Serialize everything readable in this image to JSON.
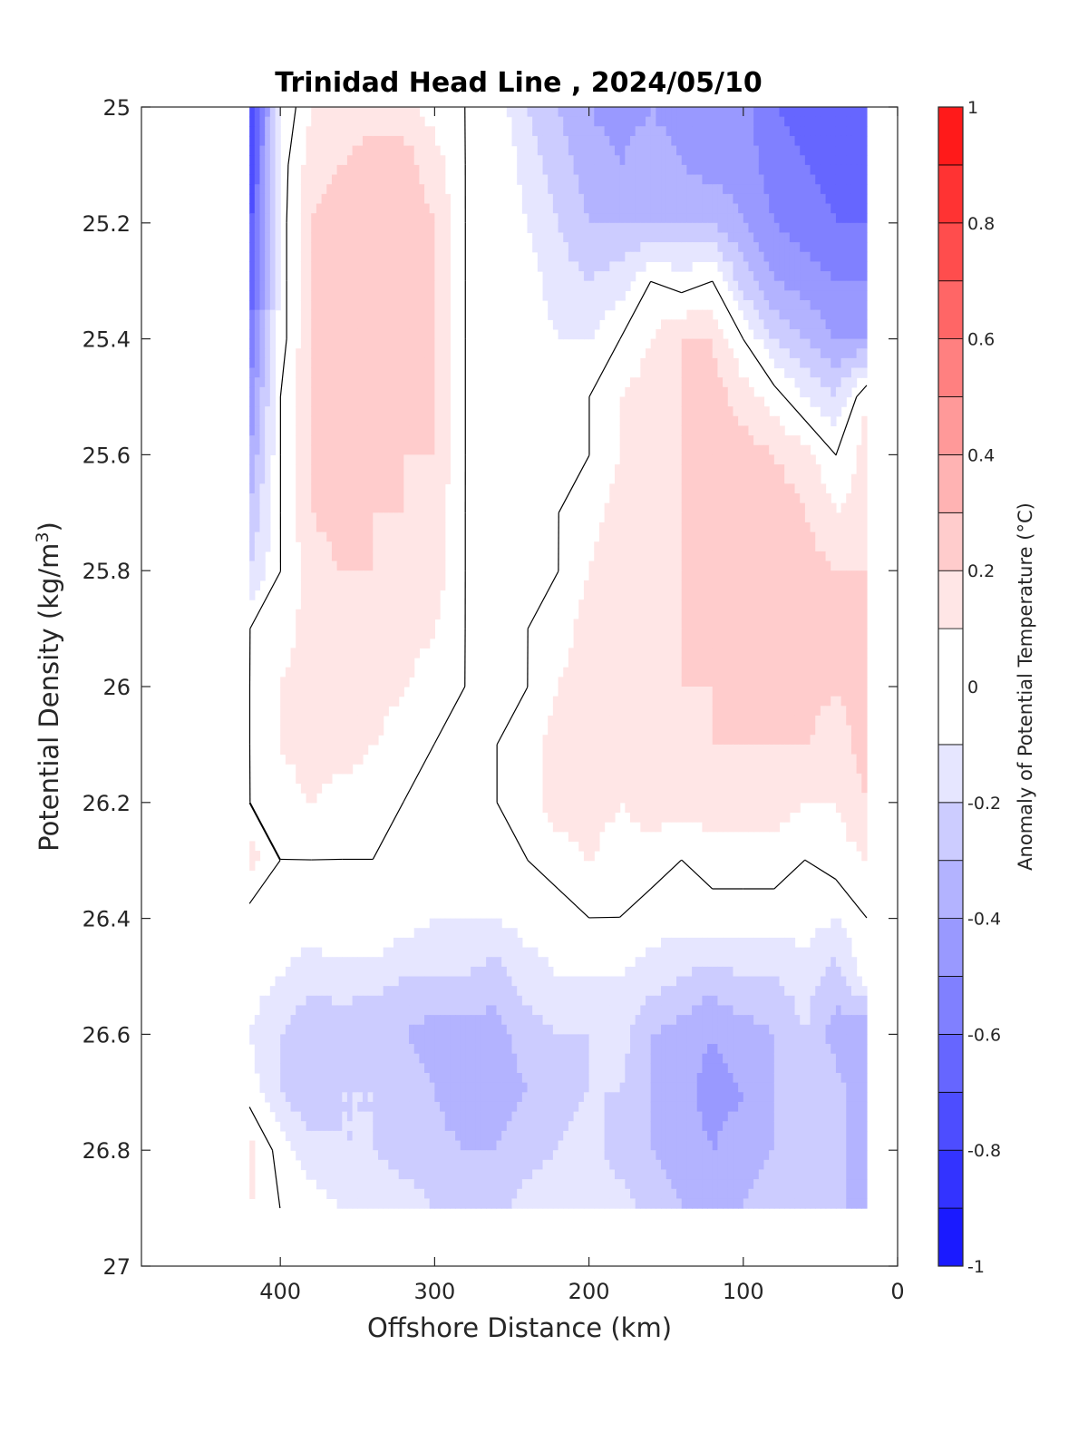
{
  "chart_data": {
    "type": "contour",
    "title": "Trinidad Head Line , 2024/05/10",
    "xlabel": "Offshore Distance (km)",
    "ylabel_text": "Potential Density (kg/m",
    "ylabel_sup": "3",
    "ylabel_close": ")",
    "xlim": [
      490,
      0
    ],
    "ylim": [
      25,
      27
    ],
    "x_reversed": true,
    "y_reversed": true,
    "xticks": [
      400,
      300,
      200,
      100,
      0
    ],
    "xtick_labels": [
      "400",
      "300",
      "200",
      "100",
      "0"
    ],
    "yticks": [
      25,
      25.2,
      25.4,
      25.6,
      25.8,
      26,
      26.2,
      26.4,
      26.6,
      26.8,
      27
    ],
    "ytick_labels": [
      "25",
      "25.2",
      "25.4",
      "25.6",
      "25.8",
      "26",
      "26.2",
      "26.4",
      "26.6",
      "26.8",
      "27"
    ],
    "colorbar": {
      "label": "Anomaly of Potential Temperature (°C)",
      "lim": [
        -1,
        1
      ],
      "ticks": [
        1,
        0.8,
        0.6,
        0.4,
        0.2,
        0,
        -0.2,
        -0.4,
        -0.6,
        -0.8,
        -1
      ],
      "tick_labels": [
        "1",
        "0.8",
        "0.6",
        "0.4",
        "0.2",
        "0",
        "-0.2",
        "-0.4",
        "-0.6",
        "-0.8",
        "-1"
      ],
      "levels": [
        -1,
        -0.9,
        -0.8,
        -0.7,
        -0.6,
        -0.5,
        -0.4,
        -0.3,
        -0.2,
        -0.1,
        0.1,
        0.2,
        0.3,
        0.4,
        0.5,
        0.6,
        0.7,
        0.8,
        0.9,
        1
      ],
      "colors": [
        "#0000ff",
        "#1a1aff",
        "#3333ff",
        "#4d4dff",
        "#6666ff",
        "#8080ff",
        "#9999ff",
        "#b3b3ff",
        "#ccccff",
        "#e6e6ff",
        "#ffffff",
        "#ffe6e6",
        "#ffcccc",
        "#ffb3b3",
        "#ff9999",
        "#ff8080",
        "#ff6666",
        "#ff4d4d",
        "#ff3333",
        "#ff1a1a",
        "#ff0000"
      ]
    },
    "x": [
      420,
      400,
      380,
      360,
      340,
      320,
      300,
      280,
      260,
      240,
      220,
      200,
      180,
      160,
      140,
      120,
      100,
      80,
      60,
      40,
      20
    ],
    "y": [
      25.0,
      25.1,
      25.2,
      25.3,
      25.4,
      25.5,
      25.6,
      25.7,
      25.8,
      25.9,
      26.0,
      26.1,
      26.2,
      26.3,
      26.4,
      26.5,
      26.6,
      26.7,
      26.8,
      26.9
    ],
    "z_rows": [
      [
        -0.85,
        -0.1,
        0.1,
        0.15,
        0.15,
        0.15,
        0.05,
        0.0,
        -0.05,
        -0.2,
        -0.3,
        -0.4,
        -0.45,
        -0.4,
        -0.45,
        -0.5,
        -0.45,
        -0.6,
        -0.65,
        -0.7,
        -0.7
      ],
      [
        -0.8,
        -0.05,
        0.15,
        0.2,
        0.25,
        0.25,
        0.15,
        0.0,
        0.0,
        -0.15,
        -0.25,
        -0.35,
        -0.4,
        -0.35,
        -0.4,
        -0.45,
        -0.45,
        -0.55,
        -0.6,
        -0.65,
        -0.65
      ],
      [
        -0.75,
        -0.05,
        0.2,
        0.25,
        0.25,
        0.25,
        0.2,
        0.0,
        0.0,
        -0.1,
        -0.2,
        -0.3,
        -0.3,
        -0.3,
        -0.3,
        -0.3,
        -0.4,
        -0.5,
        -0.55,
        -0.6,
        -0.6
      ],
      [
        -0.7,
        -0.05,
        0.2,
        0.25,
        0.25,
        0.25,
        0.2,
        0.0,
        0.0,
        -0.05,
        -0.15,
        -0.2,
        -0.15,
        0.0,
        -0.05,
        0.0,
        -0.25,
        -0.4,
        -0.45,
        -0.5,
        -0.5
      ],
      [
        -0.6,
        -0.05,
        0.2,
        0.3,
        0.25,
        0.25,
        0.2,
        0.0,
        0.0,
        -0.05,
        -0.1,
        -0.1,
        0.0,
        0.1,
        0.2,
        0.2,
        0.0,
        -0.2,
        -0.3,
        -0.4,
        -0.4
      ],
      [
        -0.5,
        0.0,
        0.2,
        0.25,
        0.25,
        0.25,
        0.2,
        0.0,
        0.0,
        0.0,
        0.0,
        0.0,
        0.1,
        0.15,
        0.2,
        0.25,
        0.15,
        0.05,
        -0.1,
        -0.2,
        0.1
      ],
      [
        -0.4,
        0.0,
        0.2,
        0.25,
        0.25,
        0.2,
        0.2,
        0.0,
        0.0,
        0.0,
        0.0,
        0.0,
        0.1,
        0.15,
        0.2,
        0.25,
        0.25,
        0.2,
        0.15,
        0.0,
        0.15
      ],
      [
        -0.3,
        0.0,
        0.2,
        0.25,
        0.2,
        0.2,
        0.15,
        0.0,
        0.0,
        0.0,
        0.0,
        0.05,
        0.15,
        0.15,
        0.2,
        0.3,
        0.25,
        0.25,
        0.2,
        0.1,
        0.15
      ],
      [
        -0.2,
        0.0,
        0.15,
        0.2,
        0.2,
        0.15,
        0.15,
        0.0,
        0.0,
        0.0,
        0.0,
        0.1,
        0.2,
        0.15,
        0.2,
        0.25,
        0.25,
        0.25,
        0.25,
        0.2,
        0.2
      ],
      [
        0.0,
        0.05,
        0.15,
        0.15,
        0.15,
        0.15,
        0.1,
        0.0,
        0.0,
        0.0,
        0.05,
        0.15,
        0.15,
        0.15,
        0.2,
        0.25,
        0.25,
        0.25,
        0.25,
        0.2,
        0.25
      ],
      [
        0.0,
        0.1,
        0.15,
        0.15,
        0.15,
        0.1,
        0.05,
        0.0,
        0.0,
        0.0,
        0.1,
        0.15,
        0.15,
        0.15,
        0.2,
        0.2,
        0.25,
        0.2,
        0.25,
        0.2,
        0.25
      ],
      [
        0.0,
        0.1,
        0.15,
        0.15,
        0.1,
        0.05,
        0.0,
        0.0,
        0.0,
        0.05,
        0.15,
        0.15,
        0.15,
        0.15,
        0.15,
        0.2,
        0.2,
        0.2,
        0.2,
        0.15,
        0.25
      ],
      [
        0.0,
        0.05,
        0.1,
        0.05,
        0.05,
        0.0,
        0.0,
        0.0,
        0.0,
        0.05,
        0.15,
        0.15,
        0.1,
        0.15,
        0.15,
        0.15,
        0.15,
        0.15,
        0.1,
        0.1,
        0.2
      ],
      [
        0.15,
        0.0,
        0.0,
        0.0,
        0.0,
        0.0,
        0.0,
        -0.05,
        -0.05,
        0.0,
        0.05,
        0.1,
        0.05,
        0.05,
        0.0,
        0.05,
        0.05,
        0.05,
        0.0,
        0.05,
        0.1
      ],
      [
        -0.05,
        -0.05,
        -0.05,
        0.0,
        0.0,
        -0.05,
        -0.1,
        -0.1,
        -0.1,
        -0.05,
        -0.05,
        0.0,
        0.0,
        -0.05,
        -0.05,
        -0.05,
        -0.05,
        -0.05,
        -0.05,
        -0.1,
        0.0
      ],
      [
        -0.05,
        -0.1,
        -0.15,
        -0.15,
        -0.15,
        -0.2,
        -0.2,
        -0.2,
        -0.25,
        -0.15,
        -0.1,
        -0.1,
        -0.1,
        -0.15,
        -0.2,
        -0.25,
        -0.2,
        -0.2,
        -0.15,
        -0.25,
        -0.05
      ],
      [
        -0.1,
        -0.2,
        -0.3,
        -0.25,
        -0.3,
        -0.3,
        -0.35,
        -0.35,
        -0.35,
        -0.25,
        -0.2,
        -0.2,
        -0.15,
        -0.3,
        -0.35,
        -0.4,
        -0.35,
        -0.3,
        -0.2,
        -0.35,
        -0.4
      ],
      [
        -0.05,
        -0.2,
        -0.3,
        -0.2,
        -0.2,
        -0.25,
        -0.3,
        -0.4,
        -0.35,
        -0.3,
        -0.25,
        -0.2,
        -0.2,
        -0.3,
        -0.35,
        -0.45,
        -0.4,
        -0.3,
        -0.2,
        -0.25,
        -0.4
      ],
      [
        0.15,
        -0.05,
        -0.15,
        -0.2,
        -0.2,
        -0.25,
        -0.25,
        -0.3,
        -0.3,
        -0.25,
        -0.2,
        -0.15,
        -0.25,
        -0.3,
        -0.35,
        -0.4,
        -0.35,
        -0.3,
        -0.2,
        -0.25,
        -0.4
      ],
      [
        0.1,
        0.0,
        -0.05,
        -0.1,
        -0.1,
        -0.15,
        -0.2,
        -0.3,
        -0.25,
        -0.15,
        -0.1,
        -0.1,
        -0.15,
        -0.25,
        -0.3,
        -0.35,
        -0.3,
        -0.25,
        -0.2,
        -0.25,
        -0.4
      ]
    ]
  }
}
